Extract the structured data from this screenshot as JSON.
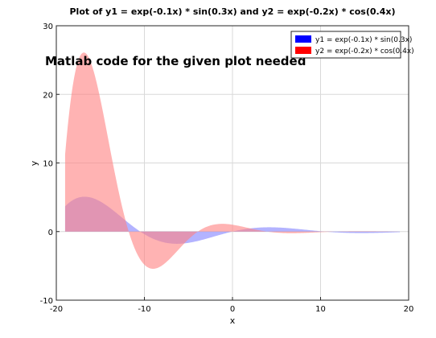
{
  "chart_data": {
    "type": "area",
    "title": "Plot of y1 = exp(-0.1x) * sin(0.3x) and y2 = exp(-0.2x) * cos(0.4x)",
    "xlabel": "x",
    "ylabel": "y",
    "xlim": [
      -20,
      20
    ],
    "ylim": [
      -10,
      30
    ],
    "xticks": [
      "-20",
      "-10",
      "0",
      "10",
      "20"
    ],
    "yticks": [
      "-10",
      "0",
      "10",
      "20",
      "30"
    ],
    "grid": true,
    "legend_position": "top-right",
    "annotation": "Matlab code for the given plot needed",
    "x_range": [
      -19,
      19
    ],
    "series": [
      {
        "name": "y1 = exp(-0.1x) * sin(0.3x)",
        "formula": "exp(-0.1x)*sin(0.3x)",
        "legend_color": "#0000ff",
        "fill_color": "#8080ff"
      },
      {
        "name": "y2 = exp(-0.2x) * cos(0.4x)",
        "formula": "exp(-0.2x)*cos(0.4x)",
        "legend_color": "#ff0000",
        "fill_color": "#ff8080"
      }
    ]
  }
}
